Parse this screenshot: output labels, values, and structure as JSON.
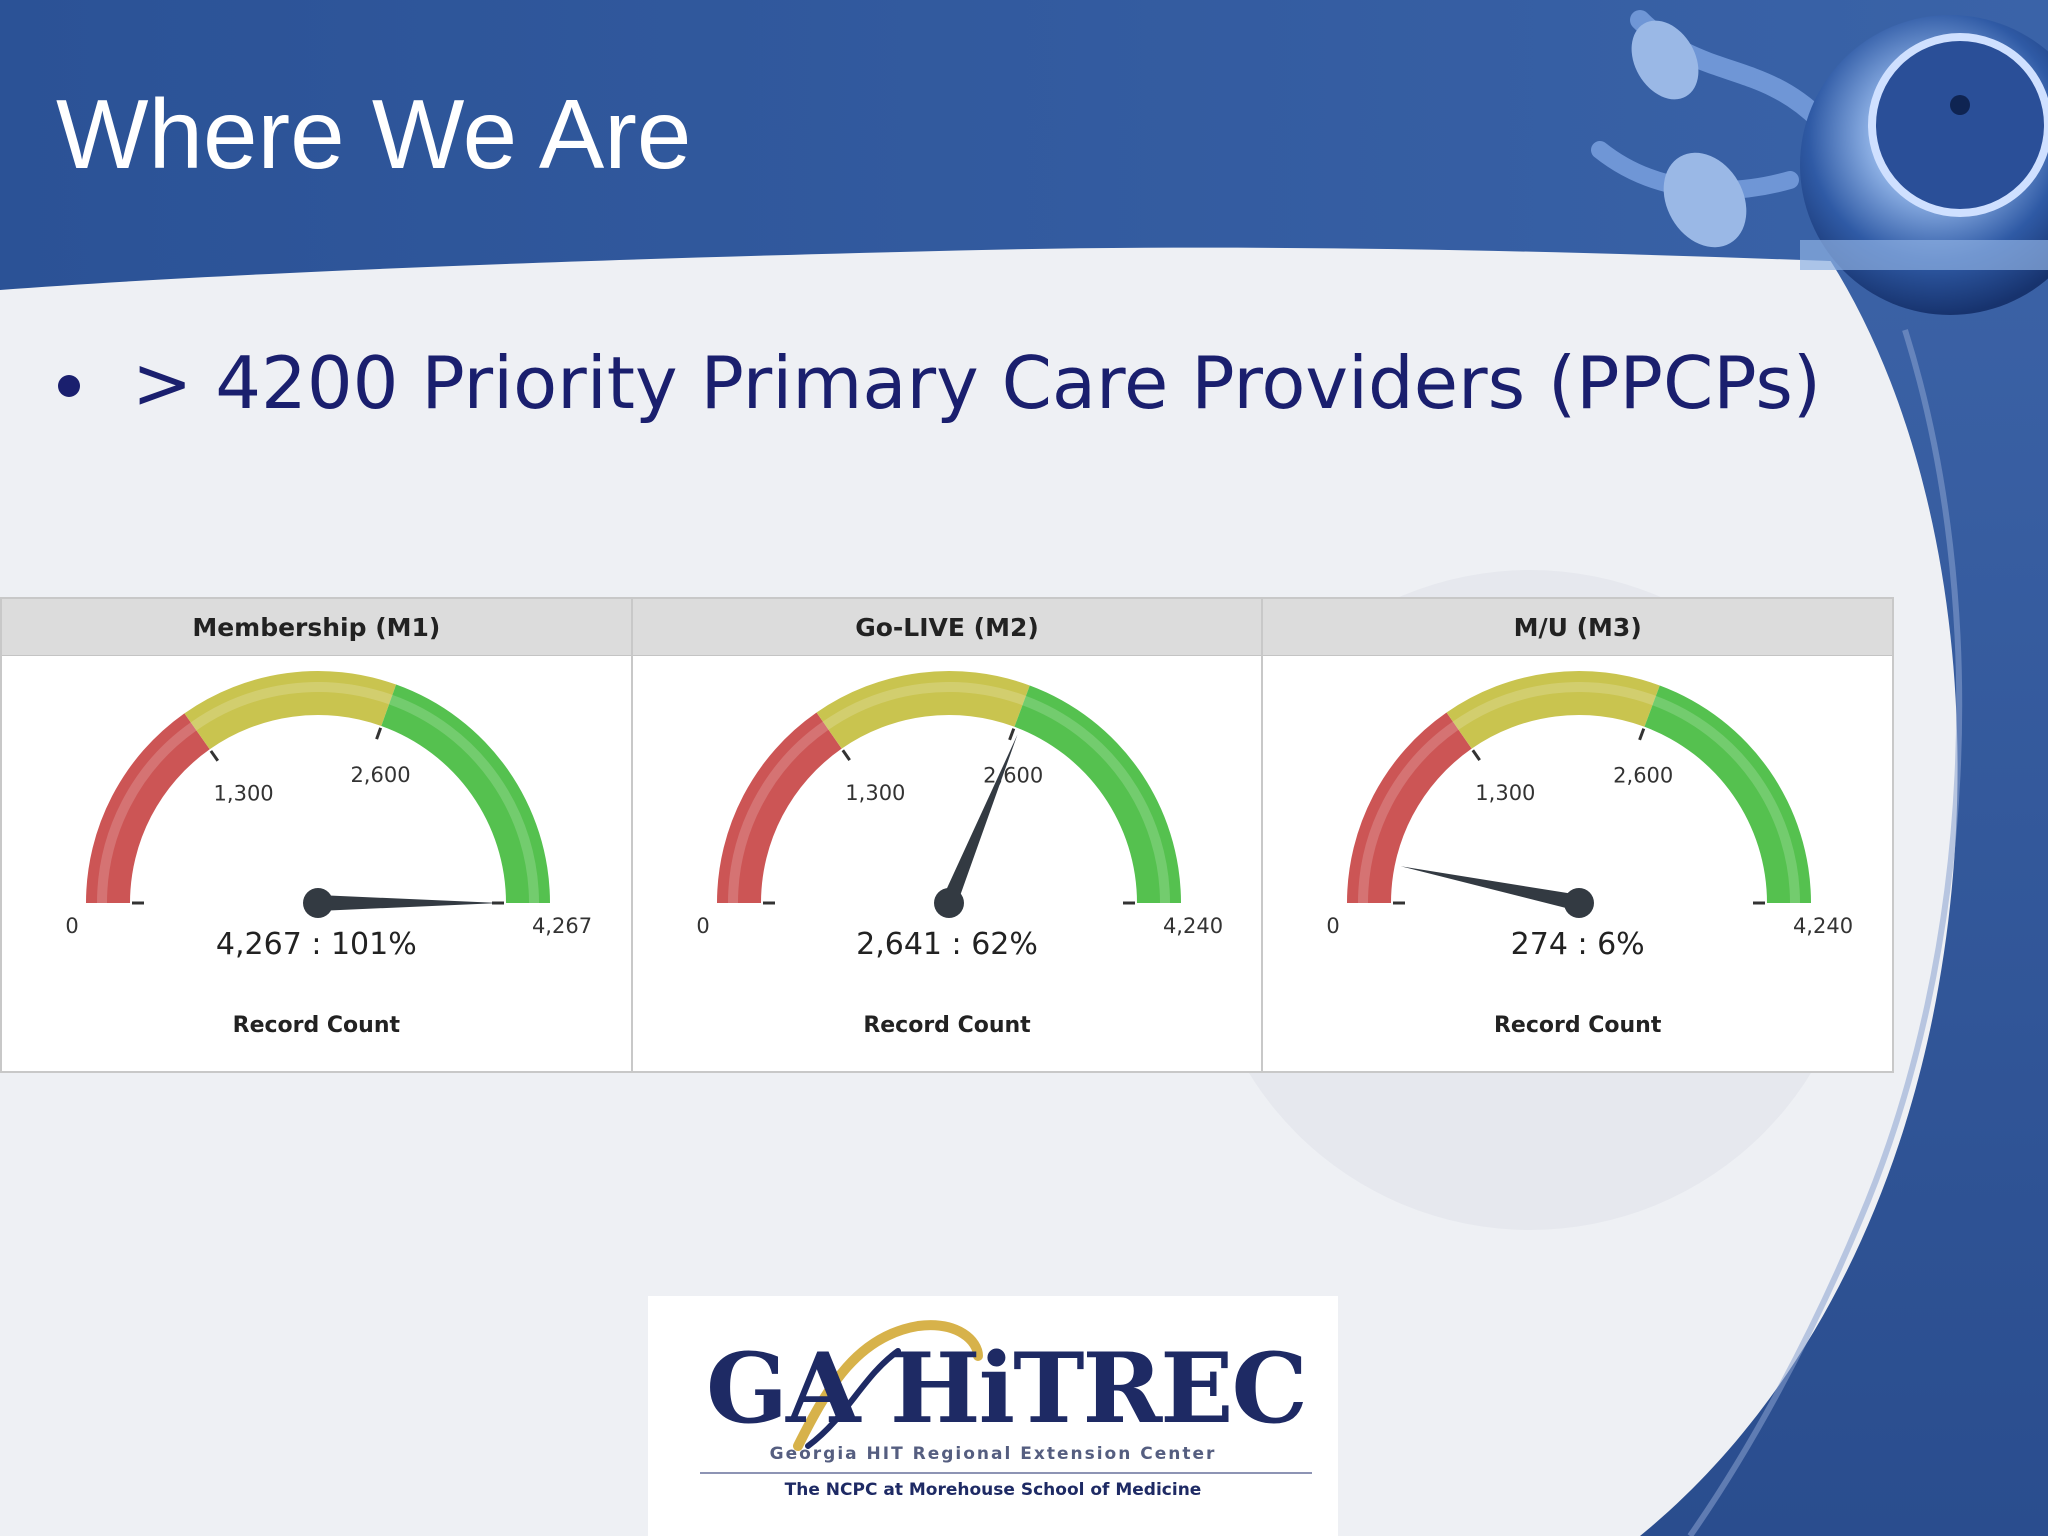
{
  "slide": {
    "title": "Where We Are",
    "bullet": "> 4200 Priority Primary Care Providers (PPCPs)"
  },
  "colors": {
    "header_blue": "#2f5597",
    "text_navy": "#1a1f6e",
    "gauge_red": "#cc5555",
    "gauge_yellow": "#c9c44f",
    "gauge_green": "#55c14f",
    "needle": "#333a42"
  },
  "icons": [
    "stethoscope-icon",
    "gahitrec-logo-swoosh-icon"
  ],
  "chart_data": [
    {
      "type": "gauge",
      "title": "Membership (M1)",
      "min": 0,
      "max": 4267,
      "ticks": [
        "0",
        "1,300",
        "2,600",
        "4,267"
      ],
      "tick_values": [
        0,
        1300,
        2600,
        4267
      ],
      "bands": [
        {
          "from": 0,
          "to": 1300,
          "color": "red"
        },
        {
          "from": 1300,
          "to": 2600,
          "color": "yellow"
        },
        {
          "from": 2600,
          "to": 4267,
          "color": "green"
        }
      ],
      "value": 4267,
      "value_label": "4,267 : 101%",
      "footer": "Record Count"
    },
    {
      "type": "gauge",
      "title": "Go-LIVE (M2)",
      "min": 0,
      "max": 4240,
      "ticks": [
        "0",
        "1,300",
        "2,600",
        "4,240"
      ],
      "tick_values": [
        0,
        1300,
        2600,
        4240
      ],
      "bands": [
        {
          "from": 0,
          "to": 1300,
          "color": "red"
        },
        {
          "from": 1300,
          "to": 2600,
          "color": "yellow"
        },
        {
          "from": 2600,
          "to": 4240,
          "color": "green"
        }
      ],
      "value": 2641,
      "value_label": "2,641 : 62%",
      "footer": "Record Count"
    },
    {
      "type": "gauge",
      "title": "M/U (M3)",
      "min": 0,
      "max": 4240,
      "ticks": [
        "0",
        "1,300",
        "2,600",
        "4,240"
      ],
      "tick_values": [
        0,
        1300,
        2600,
        4240
      ],
      "bands": [
        {
          "from": 0,
          "to": 1300,
          "color": "red"
        },
        {
          "from": 1300,
          "to": 2600,
          "color": "yellow"
        },
        {
          "from": 2600,
          "to": 4240,
          "color": "green"
        }
      ],
      "value": 274,
      "value_label": "274 : 6%",
      "footer": "Record Count"
    }
  ],
  "logo": {
    "name": "GA HiTREC",
    "line1": "Georgia HIT Regional Extension Center",
    "line2": "The NCPC at Morehouse School of Medicine"
  }
}
